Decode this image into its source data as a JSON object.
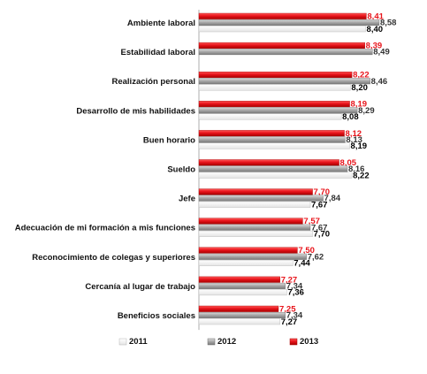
{
  "chart_data": {
    "type": "bar",
    "orientation": "horizontal",
    "categories": [
      "Ambiente laboral",
      "Estabilidad laboral",
      "Realización personal",
      "Desarrollo de mis habilidades",
      "Buen horario",
      "Sueldo",
      "Jefe",
      "Adecuación de mi formación a mis funciones",
      "Reconocimiento de colegas y superiores",
      "Cercanía al lugar de trabajo",
      "Beneficios sociales"
    ],
    "series": [
      {
        "name": "2013",
        "color": "#e8141b",
        "values": [
          8.41,
          8.39,
          8.22,
          8.19,
          8.12,
          8.05,
          7.7,
          7.57,
          7.5,
          7.27,
          7.25
        ],
        "labels": [
          "8,41",
          "8,39",
          "8,22",
          "8,19",
          "8,12",
          "8,05",
          "7,70",
          "7,57",
          "7,50",
          "7,27",
          "7,25"
        ]
      },
      {
        "name": "2012",
        "color": "#a6a6a6",
        "values": [
          8.58,
          8.49,
          8.46,
          8.29,
          8.13,
          8.16,
          7.84,
          7.67,
          7.62,
          7.34,
          7.34
        ],
        "labels": [
          "8,58",
          "8,49",
          "8,46",
          "8,29",
          "8,13",
          "8,16",
          "7,84",
          "7,67",
          "7,62",
          "7,34",
          "7,34"
        ]
      },
      {
        "name": "2011",
        "color": "#ffffff",
        "values": [
          8.4,
          null,
          8.2,
          8.08,
          8.19,
          8.22,
          7.67,
          7.7,
          7.44,
          7.36,
          7.27
        ],
        "labels": [
          "8,40",
          "",
          "8,20",
          "8,08",
          "8,19",
          "8,22",
          "7,67",
          "7,70",
          "7,44",
          "7,36",
          "7,27"
        ]
      }
    ],
    "legend": {
      "placement": "bottom",
      "entries": [
        {
          "name": "2011",
          "color": "#ffffff"
        },
        {
          "name": "2012",
          "color": "#a6a6a6"
        },
        {
          "name": "2013",
          "color": "#e8141b"
        }
      ]
    },
    "grid": false,
    "label_colors": {
      "2013": "#e8141b",
      "2012": "#333333",
      "2011": "#000000"
    }
  }
}
